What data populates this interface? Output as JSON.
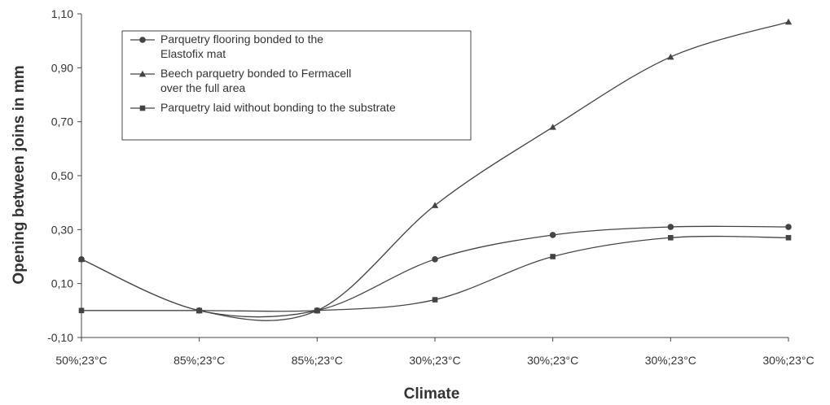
{
  "chart_data": {
    "type": "line",
    "title": "",
    "xlabel": "Climate",
    "ylabel": "Opening between joins in mm",
    "categories": [
      "50%;23°C",
      "85%;23°C",
      "85%;23°C",
      "30%;23°C",
      "30%;23°C",
      "30%;23°C",
      "30%;23°C"
    ],
    "y_ticks": [
      "-0,10",
      "0,10",
      "0,30",
      "0,50",
      "0,70",
      "0,90",
      "1,10"
    ],
    "ylim": [
      -0.1,
      1.1
    ],
    "grid": false,
    "legend_position": "top-left",
    "series": [
      {
        "name": "Parquetry flooring bonded to the Elastofix mat",
        "name_lines": [
          "Parquetry flooring bonded to the",
          "Elastofix mat"
        ],
        "marker": "circle",
        "values": [
          0.19,
          0.0,
          0.0,
          0.19,
          0.28,
          0.31,
          0.31
        ]
      },
      {
        "name": "Beech parquetry bonded to Fermacell over the full area",
        "name_lines": [
          "Beech parquetry bonded to Fermacell",
          "over the full area"
        ],
        "marker": "triangle",
        "values": [
          0.19,
          0.0,
          0.0,
          0.39,
          0.68,
          0.94,
          1.07
        ]
      },
      {
        "name": "Parquetry laid without bonding to the substrate",
        "name_lines": [
          "Parquetry laid without bonding to the substrate"
        ],
        "marker": "square",
        "values": [
          0.0,
          0.0,
          0.0,
          0.04,
          0.2,
          0.27,
          0.27
        ]
      }
    ]
  }
}
